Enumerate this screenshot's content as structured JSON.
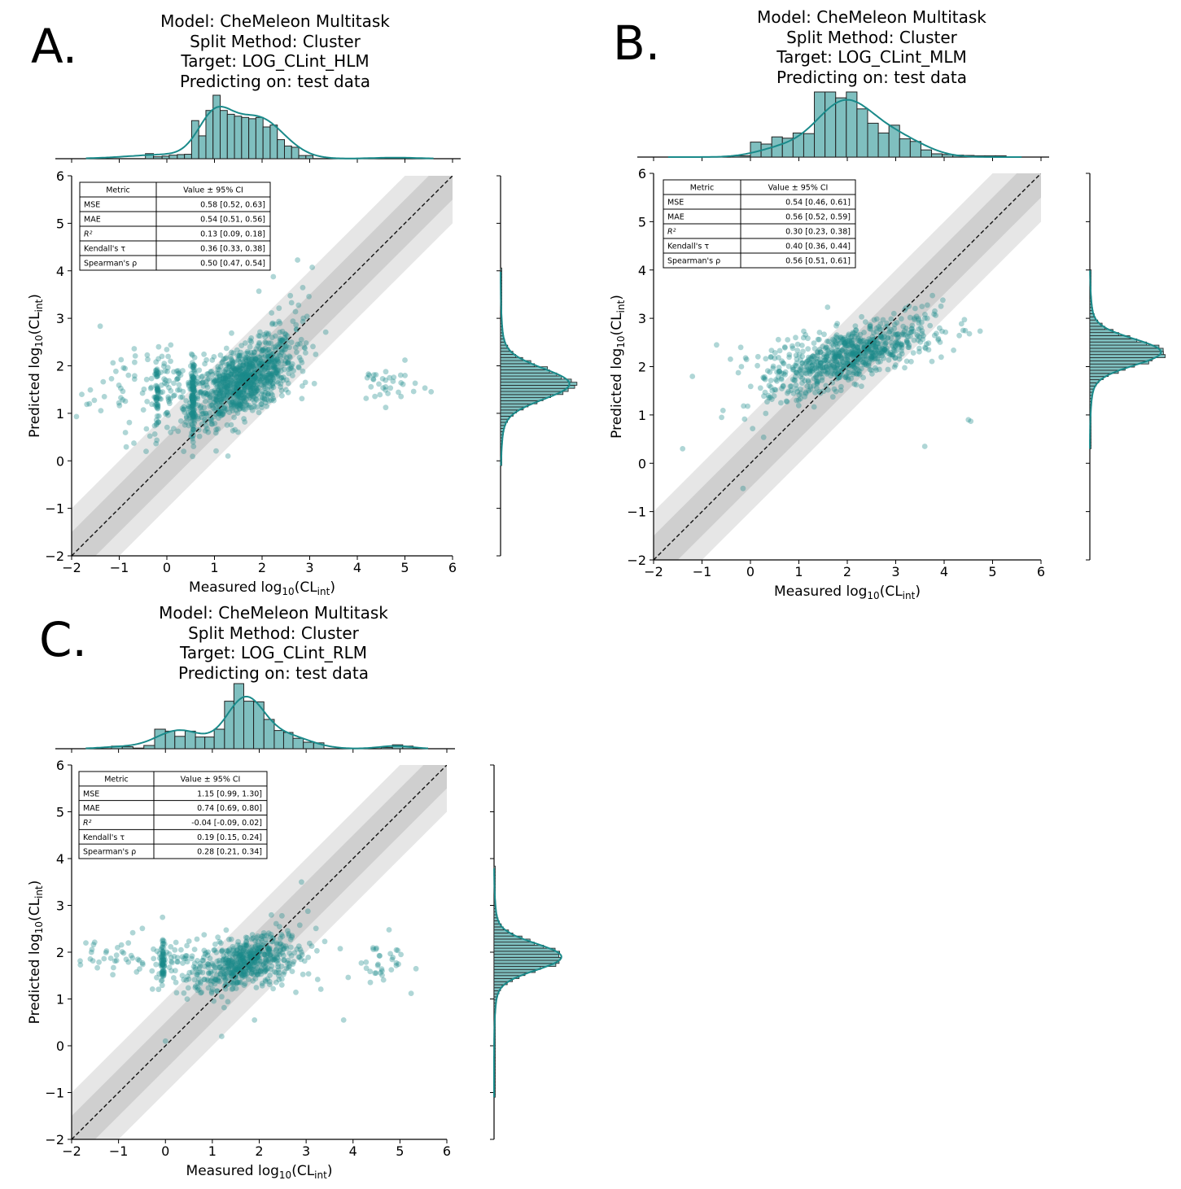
{
  "figure": {
    "panels": [
      {
        "letter": "A.",
        "title_lines": [
          "Model: CheMeleon Multitask",
          "Split Method: Cluster",
          "Target: LOG_CLint_HLM",
          "Predicting on: test data"
        ]
      },
      {
        "letter": "B.",
        "title_lines": [
          "Model: CheMeleon Multitask",
          "Split Method: Cluster",
          "Target: LOG_CLint_MLM",
          "Predicting on: test data"
        ]
      },
      {
        "letter": "C.",
        "title_lines": [
          "Model: CheMeleon Multitask",
          "Split Method: Cluster",
          "Target: LOG_CLint_RLM",
          "Predicting on: test data"
        ]
      }
    ]
  },
  "chart_data": [
    {
      "type": "scatter",
      "panel": "A",
      "title": "Model: CheMeleon Multitask / Split Method: Cluster / Target: LOG_CLint_HLM / Predicting on: test data",
      "xlabel": "Measured log10(CLint)",
      "ylabel": "Predicted log10(CLint)",
      "xlim": [
        -2,
        6
      ],
      "ylim": [
        -2,
        6
      ],
      "xticks": [
        "−2",
        "−1",
        "0",
        "1",
        "2",
        "3",
        "4",
        "5",
        "6"
      ],
      "yticks": [
        "−2",
        "−1",
        "0",
        "1",
        "2",
        "3",
        "4",
        "5",
        "6"
      ],
      "identity_line": true,
      "bands": [
        {
          "halfwidth": 0.5,
          "color": "#cfcfcf"
        },
        {
          "halfwidth": 1.0,
          "color": "#e6e6e6"
        }
      ],
      "point_color": "#1a8a8a",
      "metrics_table": {
        "header": [
          "Metric",
          "Value ± 95% CI"
        ],
        "rows": [
          [
            "MSE",
            "0.58 [0.52, 0.63]"
          ],
          [
            "MAE",
            "0.54 [0.51, 0.56]"
          ],
          [
            "R²",
            "0.13 [0.09, 0.18]"
          ],
          [
            "Kendall's τ",
            "0.36 [0.33, 0.38]"
          ],
          [
            "Spearman's ρ",
            "0.50 [0.47, 0.54]"
          ]
        ]
      },
      "scatter_clusters": [
        {
          "n": 900,
          "x_mean": 1.6,
          "x_sd": 0.55,
          "y_mean": 1.65,
          "y_sd": 0.35,
          "slope": 0.45
        },
        {
          "n": 120,
          "x_mean": 0.55,
          "x_sd": 0.02,
          "y_mean": 1.35,
          "y_sd": 0.4,
          "slope": 0
        },
        {
          "n": 50,
          "x_mean": -0.2,
          "x_sd": 0.02,
          "y_mean": 1.35,
          "y_sd": 0.35,
          "slope": 0
        },
        {
          "n": 90,
          "x_mean": 0.2,
          "x_sd": 0.5,
          "y_mean": 1.5,
          "y_sd": 0.4,
          "slope": 0.2
        },
        {
          "n": 45,
          "x_mean": -0.8,
          "x_sd": 0.55,
          "y_mean": 1.6,
          "y_sd": 0.55,
          "slope": 0
        },
        {
          "n": 35,
          "x_mean": 4.6,
          "x_sd": 0.35,
          "y_mean": 1.6,
          "y_sd": 0.2,
          "slope": 0
        },
        {
          "n": 60,
          "x_mean": 2.4,
          "x_sd": 0.4,
          "y_mean": 2.6,
          "y_sd": 0.5,
          "slope": 0.5
        }
      ],
      "top_histogram": {
        "bin_start": -1.6,
        "bin_width": 0.25,
        "counts": [
          0,
          0,
          0,
          0,
          0,
          0,
          0,
          0,
          0,
          0,
          0,
          0,
          0,
          0,
          1,
          0,
          0,
          0,
          0,
          0,
          0,
          0,
          0,
          0,
          0,
          0,
          0,
          0,
          0
        ]
      },
      "top_hist_bins": [
        {
          "x0": -0.45,
          "x1": -0.28,
          "h": 0.08
        },
        {
          "x0": -0.28,
          "x1": -0.1,
          "h": 0.03
        },
        {
          "x0": -0.1,
          "x1": 0.05,
          "h": 0.04
        },
        {
          "x0": 0.05,
          "x1": 0.22,
          "h": 0.055
        },
        {
          "x0": 0.22,
          "x1": 0.37,
          "h": 0.065
        },
        {
          "x0": 0.37,
          "x1": 0.52,
          "h": 0.07
        },
        {
          "x0": 0.52,
          "x1": 0.67,
          "h": 0.6
        },
        {
          "x0": 0.67,
          "x1": 0.82,
          "h": 0.36
        },
        {
          "x0": 0.82,
          "x1": 0.97,
          "h": 0.76
        },
        {
          "x0": 0.97,
          "x1": 1.12,
          "h": 1.0
        },
        {
          "x0": 1.12,
          "x1": 1.27,
          "h": 0.76
        },
        {
          "x0": 1.27,
          "x1": 1.42,
          "h": 0.7
        },
        {
          "x0": 1.42,
          "x1": 1.57,
          "h": 0.67
        },
        {
          "x0": 1.57,
          "x1": 1.72,
          "h": 0.65
        },
        {
          "x0": 1.72,
          "x1": 1.87,
          "h": 0.63
        },
        {
          "x0": 1.87,
          "x1": 2.02,
          "h": 0.65
        },
        {
          "x0": 2.02,
          "x1": 2.17,
          "h": 0.5
        },
        {
          "x0": 2.17,
          "x1": 2.32,
          "h": 0.53
        },
        {
          "x0": 2.32,
          "x1": 2.47,
          "h": 0.3
        },
        {
          "x0": 2.47,
          "x1": 2.62,
          "h": 0.2
        },
        {
          "x0": 2.62,
          "x1": 2.77,
          "h": 0.18
        },
        {
          "x0": 2.77,
          "x1": 2.92,
          "h": 0.05
        },
        {
          "x0": 2.92,
          "x1": 3.07,
          "h": 0.05
        }
      ],
      "kde_top": {
        "modes": [
          {
            "mu": 1.0,
            "sd": 0.35,
            "w": 0.55
          },
          {
            "mu": 1.9,
            "sd": 0.55,
            "w": 0.6
          },
          {
            "mu": 0.0,
            "sd": 0.8,
            "w": 0.06
          },
          {
            "mu": 4.8,
            "sd": 0.5,
            "w": 0.015
          }
        ],
        "peak": 0.82
      },
      "right_histogram": {
        "mu": 1.62,
        "sd": 0.32,
        "range": [
          -0.1,
          4.0
        ]
      }
    },
    {
      "type": "scatter",
      "panel": "B",
      "title": "Model: CheMeleon Multitask / Split Method: Cluster / Target: LOG_CLint_MLM / Predicting on: test data",
      "xlabel": "Measured log10(CLint)",
      "ylabel": "Predicted log10(CLint)",
      "xlim": [
        -2,
        6
      ],
      "ylim": [
        -2,
        6
      ],
      "xticks": [
        "−2",
        "−1",
        "0",
        "1",
        "2",
        "3",
        "4",
        "5",
        "6"
      ],
      "yticks": [
        "−2",
        "−1",
        "0",
        "1",
        "2",
        "3",
        "4",
        "5",
        "6"
      ],
      "identity_line": true,
      "bands": [
        {
          "halfwidth": 0.5,
          "color": "#cfcfcf"
        },
        {
          "halfwidth": 1.0,
          "color": "#e6e6e6"
        }
      ],
      "point_color": "#1a8a8a",
      "metrics_table": {
        "header": [
          "Metric",
          "Value ± 95% CI"
        ],
        "rows": [
          [
            "MSE",
            "0.54 [0.46, 0.61]"
          ],
          [
            "MAE",
            "0.56 [0.52, 0.59]"
          ],
          [
            "R²",
            "0.30 [0.23, 0.38]"
          ],
          [
            "Kendall's τ",
            "0.40 [0.36, 0.44]"
          ],
          [
            "Spearman's ρ",
            "0.56 [0.51, 0.61]"
          ]
        ]
      },
      "scatter_clusters": [
        {
          "n": 600,
          "x_mean": 2.1,
          "x_sd": 0.65,
          "y_mean": 2.25,
          "y_sd": 0.28,
          "slope": 0.3
        },
        {
          "n": 120,
          "x_mean": 0.8,
          "x_sd": 0.5,
          "y_mean": 1.9,
          "y_sd": 0.4,
          "slope": 0.3
        },
        {
          "n": 60,
          "x_mean": 3.5,
          "x_sd": 0.5,
          "y_mean": 2.7,
          "y_sd": 0.35,
          "slope": 0.2
        },
        {
          "n": 6,
          "x_mean": -0.3,
          "x_sd": 0.6,
          "y_mean": 1.5,
          "y_sd": 0.9,
          "slope": 0
        }
      ],
      "extra_points": [
        [
          -1.4,
          0.3
        ],
        [
          3.6,
          0.35
        ],
        [
          4.5,
          0.9
        ],
        [
          4.55,
          0.87
        ],
        [
          -0.7,
          2.45
        ],
        [
          -0.2,
          2.4
        ]
      ],
      "top_hist_bins": [
        {
          "x0": -0.4,
          "x1": 0.0,
          "h": 0.02
        },
        {
          "x0": 0.0,
          "x1": 0.22,
          "h": 0.23
        },
        {
          "x0": 0.22,
          "x1": 0.44,
          "h": 0.2
        },
        {
          "x0": 0.44,
          "x1": 0.66,
          "h": 0.31
        },
        {
          "x0": 0.66,
          "x1": 0.88,
          "h": 0.29
        },
        {
          "x0": 0.88,
          "x1": 1.1,
          "h": 0.37
        },
        {
          "x0": 1.1,
          "x1": 1.32,
          "h": 0.36
        },
        {
          "x0": 1.32,
          "x1": 1.54,
          "h": 1.0
        },
        {
          "x0": 1.54,
          "x1": 1.76,
          "h": 1.0
        },
        {
          "x0": 1.76,
          "x1": 1.98,
          "h": 0.91
        },
        {
          "x0": 1.98,
          "x1": 2.2,
          "h": 1.0
        },
        {
          "x0": 2.2,
          "x1": 2.42,
          "h": 0.74
        },
        {
          "x0": 2.42,
          "x1": 2.64,
          "h": 0.52
        },
        {
          "x0": 2.64,
          "x1": 2.86,
          "h": 0.37
        },
        {
          "x0": 2.86,
          "x1": 3.08,
          "h": 0.49
        },
        {
          "x0": 3.08,
          "x1": 3.3,
          "h": 0.28
        },
        {
          "x0": 3.3,
          "x1": 3.52,
          "h": 0.24
        },
        {
          "x0": 3.52,
          "x1": 3.74,
          "h": 0.11
        },
        {
          "x0": 3.74,
          "x1": 3.96,
          "h": 0.05
        },
        {
          "x0": 3.96,
          "x1": 4.18,
          "h": 0.04
        },
        {
          "x0": 4.18,
          "x1": 4.4,
          "h": 0.03
        },
        {
          "x0": 4.4,
          "x1": 4.62,
          "h": 0.025
        },
        {
          "x0": 4.62,
          "x1": 4.84,
          "h": 0.02
        },
        {
          "x0": 4.84,
          "x1": 5.06,
          "h": 0.02
        },
        {
          "x0": 5.06,
          "x1": 5.28,
          "h": 0.02
        }
      ],
      "kde_top": {
        "modes": [
          {
            "mu": 1.95,
            "sd": 0.6,
            "w": 0.85
          },
          {
            "mu": 3.1,
            "sd": 0.55,
            "w": 0.25
          },
          {
            "mu": 0.6,
            "sd": 0.5,
            "w": 0.12
          }
        ],
        "peak": 0.88
      },
      "right_histogram": {
        "mu": 2.3,
        "sd": 0.27,
        "range": [
          0.3,
          4.0
        ]
      }
    },
    {
      "type": "scatter",
      "panel": "C",
      "title": "Model: CheMeleon Multitask / Split Method: Cluster / Target: LOG_CLint_RLM / Predicting on: test data",
      "xlabel": "Measured log10(CLint)",
      "ylabel": "Predicted log10(CLint)",
      "xlim": [
        -2,
        6
      ],
      "ylim": [
        -2,
        6
      ],
      "xticks": [
        "−2",
        "−1",
        "0",
        "1",
        "2",
        "3",
        "4",
        "5",
        "6"
      ],
      "yticks": [
        "−2",
        "−1",
        "0",
        "1",
        "2",
        "3",
        "4",
        "5",
        "6"
      ],
      "identity_line": true,
      "bands": [
        {
          "halfwidth": 0.5,
          "color": "#cfcfcf"
        },
        {
          "halfwidth": 1.0,
          "color": "#e6e6e6"
        }
      ],
      "point_color": "#1a8a8a",
      "metrics_table": {
        "header": [
          "Metric",
          "Value ± 95% CI"
        ],
        "rows": [
          [
            "MSE",
            "1.15 [0.99, 1.30]"
          ],
          [
            "MAE",
            "0.74 [0.69, 0.80]"
          ],
          [
            "R²",
            "-0.04 [-0.09, 0.02]"
          ],
          [
            "Kendall's τ",
            "0.19 [0.15, 0.24]"
          ],
          [
            "Spearman's ρ",
            "0.28 [0.21, 0.34]"
          ]
        ]
      },
      "scatter_clusters": [
        {
          "n": 450,
          "x_mean": 1.7,
          "x_sd": 0.4,
          "y_mean": 1.8,
          "y_sd": 0.25,
          "slope": 0.3
        },
        {
          "n": 60,
          "x_mean": -0.05,
          "x_sd": 0.02,
          "y_mean": 1.8,
          "y_sd": 0.25,
          "slope": 0
        },
        {
          "n": 110,
          "x_mean": 0.6,
          "x_sd": 0.5,
          "y_mean": 1.75,
          "y_sd": 0.35,
          "slope": 0
        },
        {
          "n": 40,
          "x_mean": -1.0,
          "x_sd": 0.45,
          "y_mean": 1.95,
          "y_sd": 0.2,
          "slope": 0
        },
        {
          "n": 70,
          "x_mean": 2.6,
          "x_sd": 0.35,
          "y_mean": 1.85,
          "y_sd": 0.35,
          "slope": 0.2
        },
        {
          "n": 35,
          "x_mean": 4.7,
          "x_sd": 0.35,
          "y_mean": 1.8,
          "y_sd": 0.3,
          "slope": 0
        }
      ],
      "extra_points": [
        [
          3.8,
          0.55
        ],
        [
          1.2,
          0.2
        ],
        [
          0.0,
          0.1
        ],
        [
          2.9,
          3.5
        ],
        [
          1.9,
          0.55
        ]
      ],
      "top_hist_bins": [
        {
          "x0": -1.15,
          "x1": -0.92,
          "h": 0.04
        },
        {
          "x0": -0.92,
          "x1": -0.69,
          "h": 0.03
        },
        {
          "x0": -0.69,
          "x1": -0.46,
          "h": 0.01
        },
        {
          "x0": -0.46,
          "x1": -0.23,
          "h": 0.05
        },
        {
          "x0": -0.23,
          "x1": 0.0,
          "h": 0.3
        },
        {
          "x0": 0.0,
          "x1": 0.2,
          "h": 0.27
        },
        {
          "x0": 0.2,
          "x1": 0.42,
          "h": 0.19
        },
        {
          "x0": 0.42,
          "x1": 0.64,
          "h": 0.27
        },
        {
          "x0": 0.64,
          "x1": 0.84,
          "h": 0.18
        },
        {
          "x0": 0.84,
          "x1": 1.04,
          "h": 0.18
        },
        {
          "x0": 1.04,
          "x1": 1.26,
          "h": 0.3
        },
        {
          "x0": 1.26,
          "x1": 1.46,
          "h": 0.73
        },
        {
          "x0": 1.46,
          "x1": 1.67,
          "h": 1.0
        },
        {
          "x0": 1.67,
          "x1": 1.88,
          "h": 0.73
        },
        {
          "x0": 1.88,
          "x1": 2.1,
          "h": 0.72
        },
        {
          "x0": 2.1,
          "x1": 2.32,
          "h": 0.45
        },
        {
          "x0": 2.32,
          "x1": 2.52,
          "h": 0.28
        },
        {
          "x0": 2.52,
          "x1": 2.72,
          "h": 0.25
        },
        {
          "x0": 2.72,
          "x1": 2.94,
          "h": 0.16
        },
        {
          "x0": 2.94,
          "x1": 3.16,
          "h": 0.1
        },
        {
          "x0": 3.16,
          "x1": 3.38,
          "h": 0.09
        },
        {
          "x0": 4.6,
          "x1": 4.84,
          "h": 0.02
        },
        {
          "x0": 4.84,
          "x1": 5.06,
          "h": 0.06
        },
        {
          "x0": 5.06,
          "x1": 5.28,
          "h": 0.04
        }
      ],
      "kde_top": {
        "modes": [
          {
            "mu": 1.7,
            "sd": 0.4,
            "w": 0.72
          },
          {
            "mu": 0.3,
            "sd": 0.5,
            "w": 0.27
          },
          {
            "mu": 2.6,
            "sd": 0.5,
            "w": 0.18
          },
          {
            "mu": 4.9,
            "sd": 0.35,
            "w": 0.04
          },
          {
            "mu": -1.0,
            "sd": 0.4,
            "w": 0.025
          }
        ],
        "peak": 0.8
      },
      "right_histogram": {
        "mu": 1.9,
        "sd": 0.28,
        "range": [
          -1.1,
          3.8
        ]
      }
    }
  ]
}
